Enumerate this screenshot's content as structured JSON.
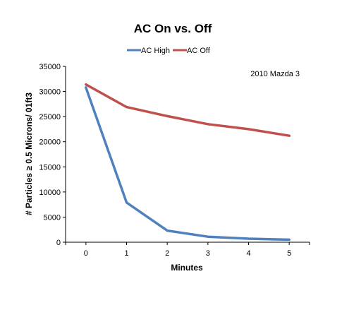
{
  "chart_data": {
    "type": "line",
    "title": "AC On vs. Off",
    "xlabel": "Minutes",
    "ylabel": "# Particles ≥ 0.5 Microns/ 01ft3",
    "x": [
      0,
      1,
      2,
      3,
      4,
      5
    ],
    "x_tick_labels": [
      "0",
      "1",
      "2",
      "3",
      "4",
      "5"
    ],
    "ylim": [
      0,
      35000
    ],
    "y_ticks": [
      0,
      5000,
      10000,
      15000,
      20000,
      25000,
      30000,
      35000
    ],
    "y_tick_labels": [
      "0",
      "5000",
      "10000",
      "15000",
      "20000",
      "25000",
      "30000",
      "35000"
    ],
    "annotation": "2010 Mazda 3",
    "legend_position": "top",
    "grid": false,
    "series": [
      {
        "name": "AC High",
        "color": "#4f81bd",
        "values": [
          30800,
          7900,
          2300,
          1100,
          700,
          500
        ]
      },
      {
        "name": "AC Off",
        "color": "#c0504d",
        "values": [
          31400,
          26900,
          25100,
          23500,
          22500,
          21200
        ]
      }
    ]
  }
}
